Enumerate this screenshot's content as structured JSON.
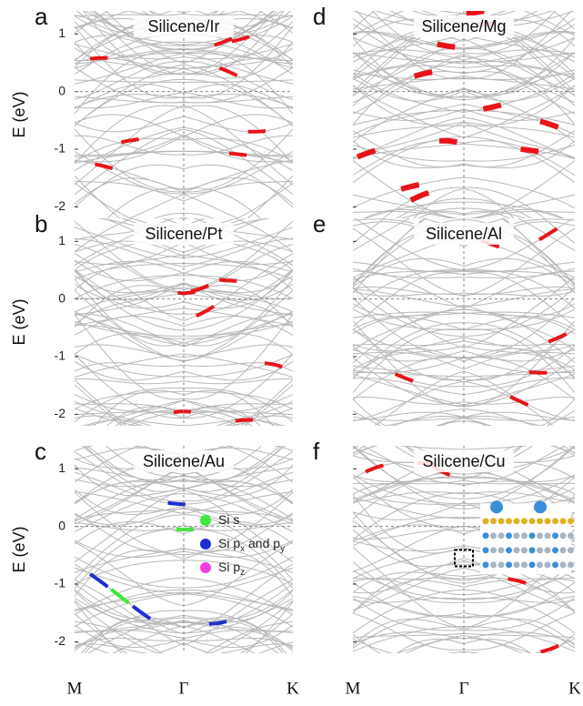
{
  "figure": {
    "y_label": "E (eV)",
    "ylim": [
      -2.2,
      1.4
    ],
    "yticks": [
      -2,
      -1,
      0,
      1
    ],
    "x_labels": [
      "M",
      "Γ",
      "K"
    ],
    "panels": [
      {
        "letter": "a",
        "title": "Silicene/Ir",
        "highlight": "#e8141a"
      },
      {
        "letter": "d",
        "title": "Silicene/Mg",
        "highlight": "#e8141a"
      },
      {
        "letter": "b",
        "title": "Silicene/Pt",
        "highlight": "#e8141a"
      },
      {
        "letter": "e",
        "title": "Silicene/Al",
        "highlight": "#e8141a"
      },
      {
        "letter": "c",
        "title": "Silicene/Au",
        "highlight": "#1f2fd0"
      },
      {
        "letter": "f",
        "title": "Silicene/Cu",
        "highlight": "#e8141a"
      }
    ],
    "legend": [
      {
        "color": "#3ee83a",
        "parts": [
          "Si s"
        ]
      },
      {
        "color": "#1f2fd0",
        "parts": [
          "Si p",
          "x",
          " and p",
          "y"
        ]
      },
      {
        "color": "#f03ce0",
        "parts": [
          "Si p",
          "z"
        ]
      }
    ]
  }
}
